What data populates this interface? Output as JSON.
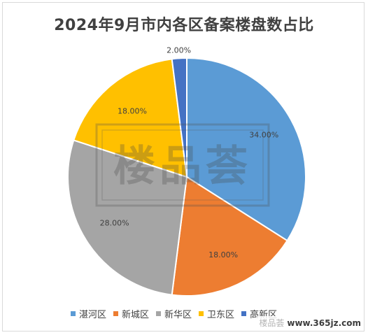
{
  "chart_data": {
    "type": "pie",
    "title": "2024年9月市内各区备案楼盘数占比",
    "categories": [
      "湛河区",
      "新城区",
      "新华区",
      "卫东区",
      "高新区"
    ],
    "values": [
      34.0,
      18.0,
      28.0,
      18.0,
      2.0
    ],
    "data_labels": [
      "34.00%",
      "18.00%",
      "28.00%",
      "18.00%",
      "2.00%"
    ],
    "colors": [
      "#5B9BD5",
      "#ED7D31",
      "#A5A5A5",
      "#FFC000",
      "#4472C4"
    ],
    "start_angle": "12 o'clock",
    "direction": "clockwise",
    "legend_position": "bottom"
  },
  "watermark": {
    "center_text": "楼品荟",
    "corner_faint": "楼品荟",
    "corner_url": "www.365jz.com"
  }
}
